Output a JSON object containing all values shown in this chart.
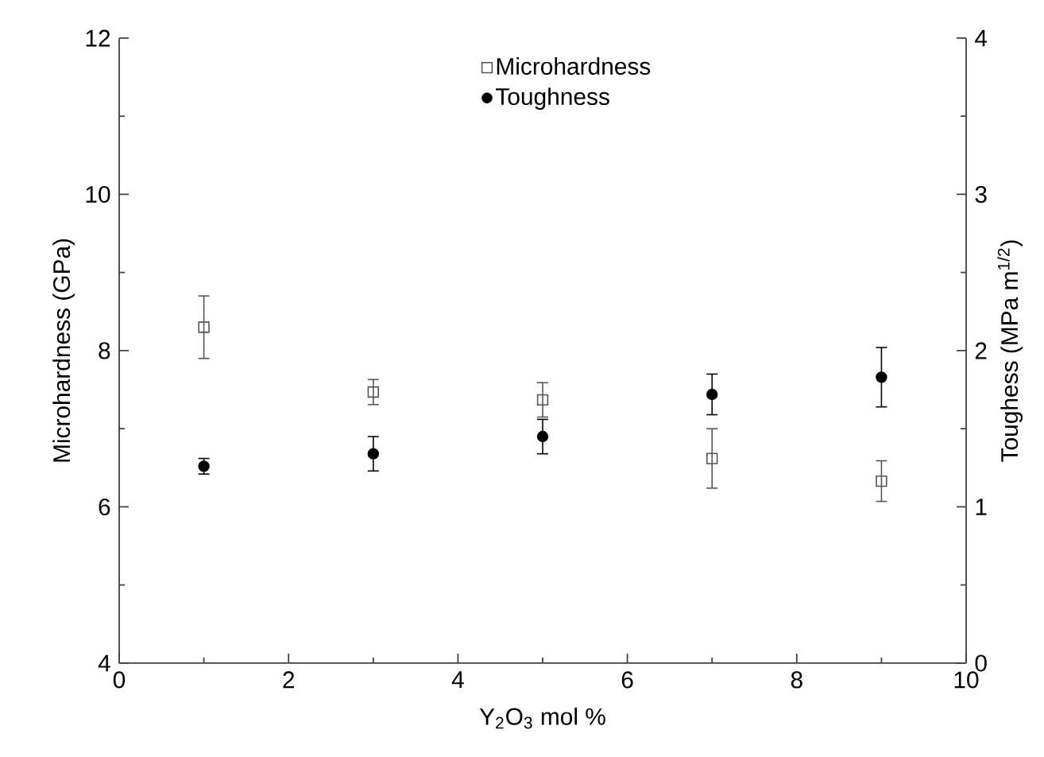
{
  "chart_data": {
    "type": "scatter",
    "xlabel": "Y$_{2}$O$_{3}$ mol %",
    "ylabel": "Microhardness (GPa)",
    "y2label": "Toughess (MPa m$^{1/2}$)",
    "xlim": [
      0,
      10
    ],
    "xticks": [
      0,
      2,
      4,
      6,
      8,
      10
    ],
    "ylim": [
      4,
      12
    ],
    "yticks": [
      4,
      6,
      8,
      10,
      12
    ],
    "y2lim": [
      0,
      4
    ],
    "y2ticks": [
      0,
      1,
      2,
      3,
      4
    ],
    "legend": "top",
    "grid": false,
    "x": [
      1,
      3,
      5,
      7,
      9
    ],
    "series": [
      {
        "name": "Microhardness",
        "color": "#555555",
        "marker": "square",
        "values": [
          8.3,
          7.47,
          7.37,
          6.62,
          6.33
        ],
        "errors": [
          0.4,
          0.16,
          0.22,
          0.38,
          0.26
        ]
      },
      {
        "name": "Toughness",
        "color": "#000000",
        "marker": "circle",
        "axis": "y2",
        "values": [
          1.26,
          1.34,
          1.45,
          1.72,
          1.83
        ],
        "errors": [
          0.05,
          0.11,
          0.11,
          0.13,
          0.19
        ]
      }
    ]
  }
}
